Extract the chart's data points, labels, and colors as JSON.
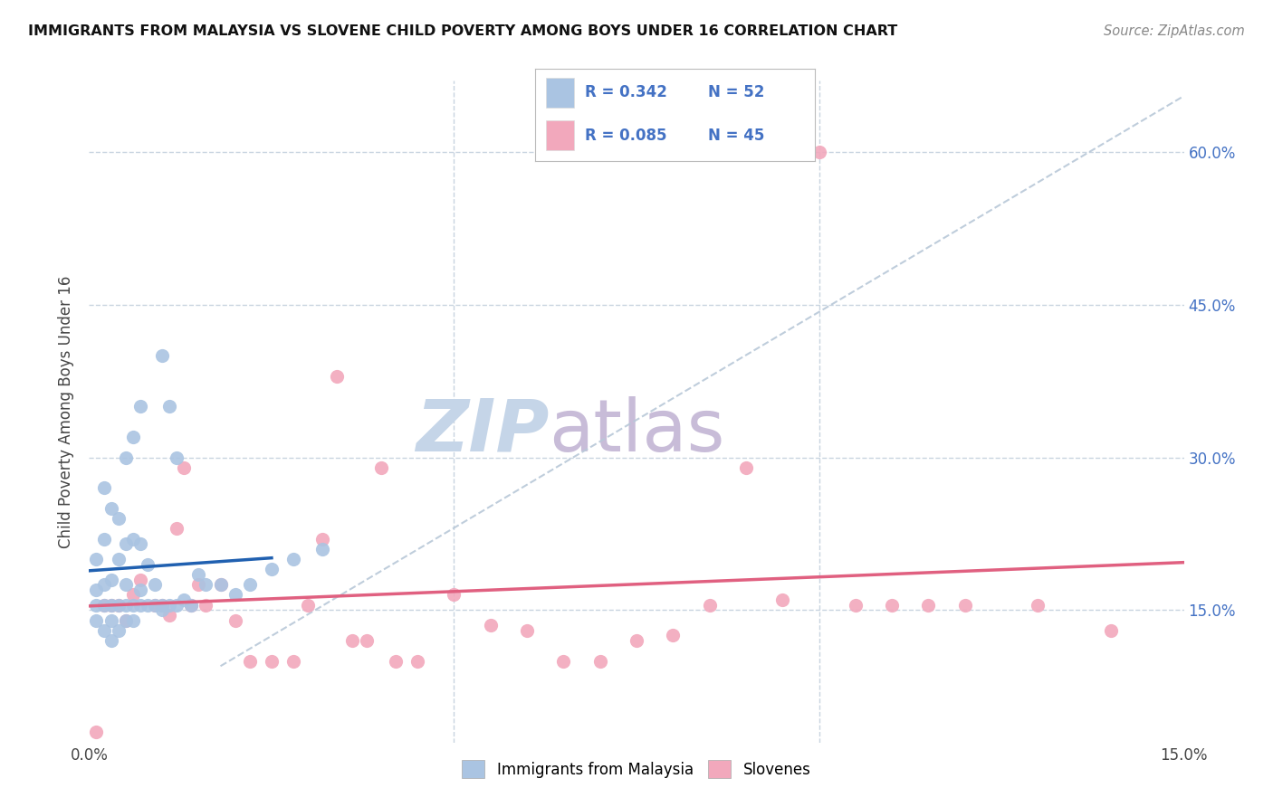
{
  "title": "IMMIGRANTS FROM MALAYSIA VS SLOVENE CHILD POVERTY AMONG BOYS UNDER 16 CORRELATION CHART",
  "source": "Source: ZipAtlas.com",
  "ylabel": "Child Poverty Among Boys Under 16",
  "ytick_labels": [
    "15.0%",
    "30.0%",
    "45.0%",
    "60.0%"
  ],
  "ytick_values": [
    0.15,
    0.3,
    0.45,
    0.6
  ],
  "xlim": [
    0.0,
    0.15
  ],
  "ylim": [
    0.02,
    0.67
  ],
  "label1": "Immigrants from Malaysia",
  "label2": "Slovenes",
  "color1": "#aac4e2",
  "color2": "#f2a8bc",
  "line_color1": "#2060b0",
  "line_color2": "#e06080",
  "diagonal_color": "#b8c8d8",
  "watermark_zip": "ZIP",
  "watermark_atlas": "atlas",
  "watermark_color_zip": "#c5d5e8",
  "watermark_color_atlas": "#c8bcd8",
  "scatter1_x": [
    0.001,
    0.001,
    0.001,
    0.001,
    0.002,
    0.002,
    0.002,
    0.002,
    0.002,
    0.003,
    0.003,
    0.003,
    0.003,
    0.003,
    0.004,
    0.004,
    0.004,
    0.004,
    0.005,
    0.005,
    0.005,
    0.005,
    0.005,
    0.006,
    0.006,
    0.006,
    0.006,
    0.007,
    0.007,
    0.007,
    0.007,
    0.008,
    0.008,
    0.009,
    0.009,
    0.01,
    0.01,
    0.01,
    0.011,
    0.011,
    0.012,
    0.012,
    0.013,
    0.014,
    0.015,
    0.016,
    0.018,
    0.02,
    0.022,
    0.025,
    0.028,
    0.032
  ],
  "scatter1_y": [
    0.14,
    0.155,
    0.17,
    0.2,
    0.13,
    0.155,
    0.175,
    0.22,
    0.27,
    0.12,
    0.14,
    0.155,
    0.18,
    0.25,
    0.13,
    0.155,
    0.2,
    0.24,
    0.14,
    0.155,
    0.175,
    0.215,
    0.3,
    0.14,
    0.155,
    0.22,
    0.32,
    0.155,
    0.17,
    0.215,
    0.35,
    0.155,
    0.195,
    0.155,
    0.175,
    0.15,
    0.155,
    0.4,
    0.155,
    0.35,
    0.155,
    0.3,
    0.16,
    0.155,
    0.185,
    0.175,
    0.175,
    0.165,
    0.175,
    0.19,
    0.2,
    0.21
  ],
  "scatter2_x": [
    0.001,
    0.002,
    0.003,
    0.004,
    0.005,
    0.006,
    0.007,
    0.009,
    0.01,
    0.011,
    0.012,
    0.013,
    0.014,
    0.015,
    0.016,
    0.018,
    0.02,
    0.022,
    0.025,
    0.028,
    0.03,
    0.032,
    0.034,
    0.036,
    0.038,
    0.04,
    0.042,
    0.045,
    0.05,
    0.055,
    0.06,
    0.065,
    0.07,
    0.075,
    0.08,
    0.085,
    0.09,
    0.095,
    0.1,
    0.105,
    0.11,
    0.115,
    0.12,
    0.13,
    0.14
  ],
  "scatter2_y": [
    0.03,
    0.155,
    0.155,
    0.155,
    0.14,
    0.165,
    0.18,
    0.155,
    0.155,
    0.145,
    0.23,
    0.29,
    0.155,
    0.175,
    0.155,
    0.175,
    0.14,
    0.1,
    0.1,
    0.1,
    0.155,
    0.22,
    0.38,
    0.12,
    0.12,
    0.29,
    0.1,
    0.1,
    0.165,
    0.135,
    0.13,
    0.1,
    0.1,
    0.12,
    0.125,
    0.155,
    0.29,
    0.16,
    0.6,
    0.155,
    0.155,
    0.155,
    0.155,
    0.155,
    0.13
  ]
}
